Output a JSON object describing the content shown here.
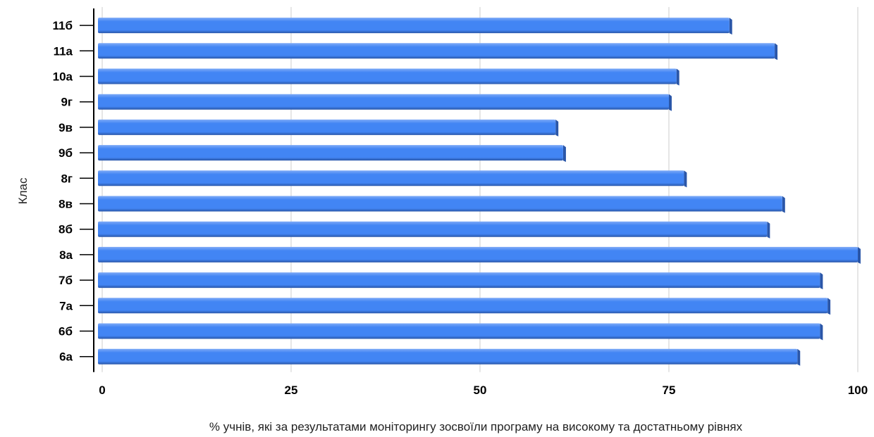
{
  "chart_data": {
    "type": "bar",
    "orientation": "horizontal",
    "categories": [
      "11б",
      "11а",
      "10а",
      "9г",
      "9в",
      "9б",
      "8г",
      "8в",
      "8б",
      "8а",
      "7б",
      "7а",
      "6б",
      "6а"
    ],
    "values": [
      83,
      89,
      76,
      75,
      60,
      61,
      77,
      90,
      88,
      100,
      95,
      96,
      95,
      92
    ],
    "title": "",
    "xlabel": "% учнів, які за результатами моніторингу зосвоїли програму на високому та достатньому рівнях",
    "ylabel": "Клас",
    "xlim": [
      0,
      100
    ],
    "xticks": [
      "0",
      "25",
      "50",
      "75",
      "100"
    ],
    "grid": true,
    "legend": "none",
    "colors": {
      "bar": "#4285f4",
      "bar_shadow": "#2a56a8",
      "bar_highlight": "#7eaaf7"
    }
  }
}
